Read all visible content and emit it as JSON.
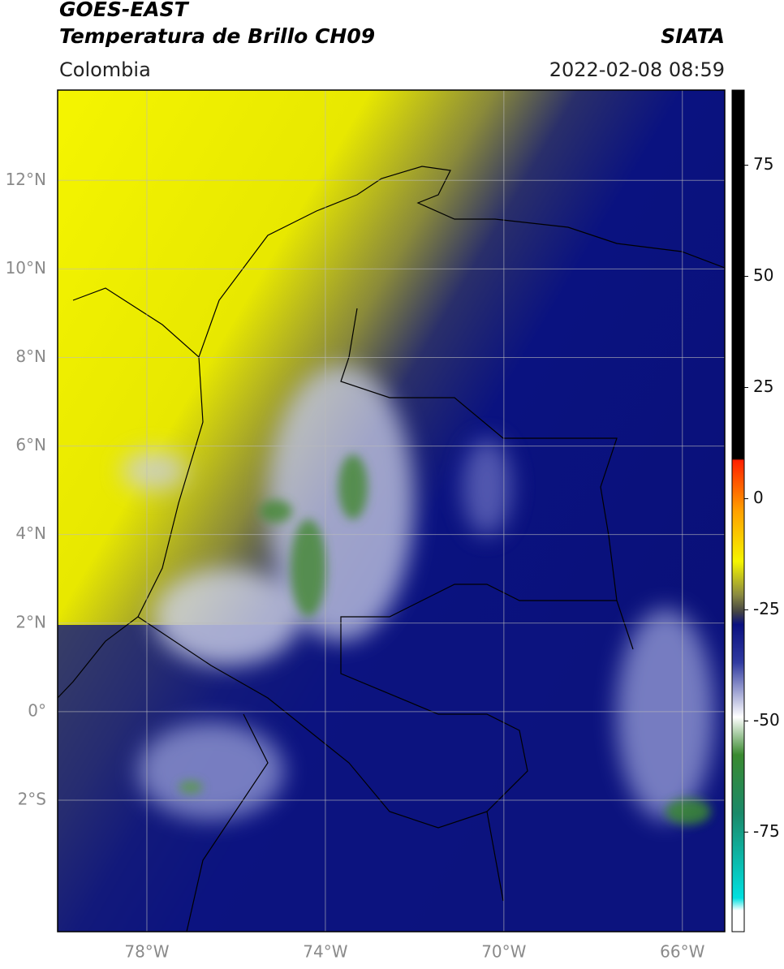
{
  "header": {
    "title": "GOES-EAST",
    "subtitle": "Temperatura de Brillo CH09",
    "source": "SIATA",
    "region": "Colombia",
    "datetime": "2022-02-08 08:59"
  },
  "map": {
    "lonlim": [
      -80,
      -65.05
    ],
    "latlim": [
      -4.97,
      14.04
    ],
    "lon_ticks": [
      {
        "value": -78,
        "label": "78°W"
      },
      {
        "value": -74,
        "label": "74°W"
      },
      {
        "value": -70,
        "label": "70°W"
      },
      {
        "value": -66,
        "label": "66°W"
      }
    ],
    "lat_ticks": [
      {
        "value": 12,
        "label": "12°N"
      },
      {
        "value": 10,
        "label": "10°N"
      },
      {
        "value": 8,
        "label": "8°N"
      },
      {
        "value": 6,
        "label": "6°N"
      },
      {
        "value": 4,
        "label": "4°N"
      },
      {
        "value": 2,
        "label": "2°N"
      },
      {
        "value": 0,
        "label": "0°"
      },
      {
        "value": -2,
        "label": "2°S"
      }
    ]
  },
  "colorbar": {
    "lim": [
      -97.4,
      91.9
    ],
    "ticks": [
      75,
      50,
      25,
      0,
      -25,
      -50,
      -75
    ]
  }
}
